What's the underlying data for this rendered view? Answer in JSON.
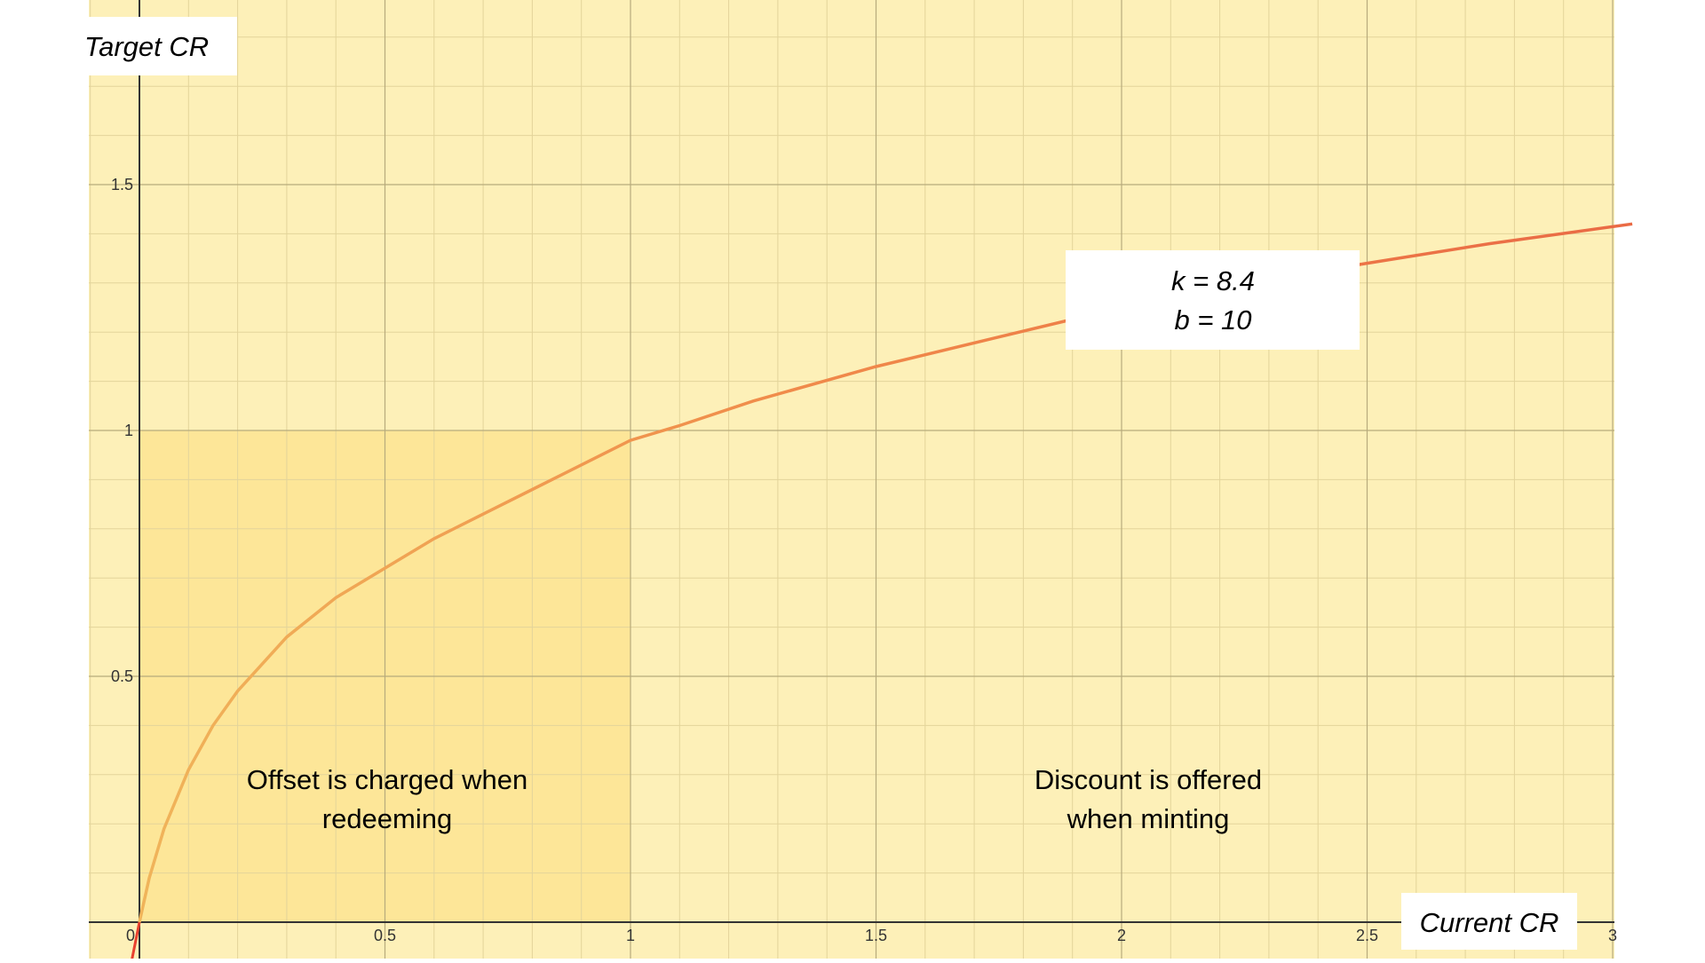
{
  "chart_data": {
    "type": "line",
    "title": "",
    "xlabel": "Current CR",
    "ylabel": "Target CR",
    "xlim": [
      0,
      3.04
    ],
    "ylim": [
      -0.1,
      1.88
    ],
    "x_ticks": [
      {
        "value": 0,
        "label": "0"
      },
      {
        "value": 0.5,
        "label": "0.5"
      },
      {
        "value": 1,
        "label": "1"
      },
      {
        "value": 1.5,
        "label": "1.5"
      },
      {
        "value": 2,
        "label": "2"
      },
      {
        "value": 2.5,
        "label": "2.5"
      },
      {
        "value": 3,
        "label": "3"
      }
    ],
    "y_ticks": [
      {
        "value": 0.5,
        "label": "0.5"
      },
      {
        "value": 1,
        "label": "1"
      },
      {
        "value": 1.5,
        "label": "1.5"
      }
    ],
    "grid": true,
    "minor_grid": true,
    "series": [
      {
        "x": [
          -0.02,
          0,
          0.02,
          0.05,
          0.1,
          0.15,
          0.2,
          0.3,
          0.4,
          0.5,
          0.6,
          0.7,
          0.8,
          0.9,
          1.0,
          1.1,
          1.25,
          1.5,
          1.75,
          2.0,
          2.25,
          2.5,
          2.75,
          3.04
        ],
        "y": [
          -0.1,
          0,
          0.09,
          0.19,
          0.31,
          0.4,
          0.47,
          0.58,
          0.66,
          0.72,
          0.78,
          0.83,
          0.88,
          0.93,
          0.98,
          1.01,
          1.06,
          1.13,
          1.19,
          1.25,
          1.3,
          1.34,
          1.38,
          1.42
        ],
        "colors": [
          "#e8412f",
          "#f0b45a",
          "#f08a4a",
          "#ea6b45"
        ]
      }
    ],
    "regions": [
      {
        "x": [
          0,
          1
        ],
        "y": [
          0,
          1
        ],
        "label": "Offset is charged when redeeming",
        "color": "#fde698"
      },
      {
        "x": [
          1,
          3.04
        ],
        "y": [
          0,
          1
        ],
        "label": "Discount is offered when minting",
        "color": "#fdf0b8"
      }
    ],
    "background_color": "#fdf0b8",
    "annotation": {
      "lines": [
        "k = 8.4",
        "b = 10"
      ]
    }
  },
  "labels": {
    "xlabel": "Current CR",
    "ylabel": "Target CR",
    "param_k": "k = 8.4",
    "param_b": "b = 10",
    "region_left_line1": "Offset is charged when",
    "region_left_line2": "redeeming",
    "region_right_line1": "Discount is offered",
    "region_right_line2": "when minting"
  }
}
